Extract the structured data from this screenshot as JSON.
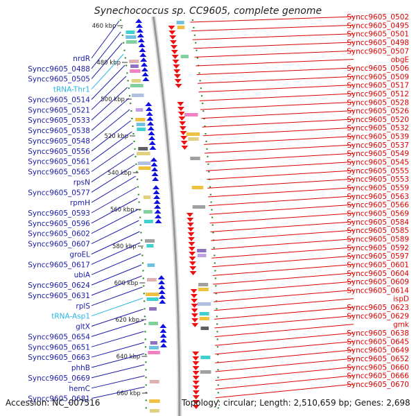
{
  "title": "Synechococcus sp. CC9605, complete genome",
  "footer": {
    "accession": "Accession: NC_007516",
    "summary": "Topology: circular; Length: 2,510,659 bp; Genes: 2,698"
  },
  "colors": {
    "backbone": "#999999",
    "forward_strand": "#1010e0",
    "reverse_strand": "#ee1111",
    "left_label": "#1a1aa8",
    "right_label": "#dd0000",
    "trna_label": "#29b6e8",
    "orf_ring": "#2a8a2a"
  },
  "ticks": [
    "460 kbp",
    "480 kbp",
    "500 kbp",
    "520 kbp",
    "540 kbp",
    "560 kbp",
    "580 kbp",
    "600 kbp",
    "620 kbp",
    "640 kbp",
    "660 kbp"
  ],
  "left_labels": [
    {
      "text": "nrdR",
      "kind": "gene"
    },
    {
      "text": "Syncc9605_0488",
      "kind": "gene"
    },
    {
      "text": "Syncc9605_0505",
      "kind": "gene"
    },
    {
      "text": "tRNA-Thr1",
      "kind": "trna"
    },
    {
      "text": "Syncc9605_0514",
      "kind": "gene"
    },
    {
      "text": "Syncc9605_0521",
      "kind": "gene"
    },
    {
      "text": "Syncc9605_0533",
      "kind": "gene"
    },
    {
      "text": "Syncc9605_0538",
      "kind": "gene"
    },
    {
      "text": "Syncc9605_0548",
      "kind": "gene"
    },
    {
      "text": "Syncc9605_0556",
      "kind": "gene"
    },
    {
      "text": "Syncc9605_0561",
      "kind": "gene"
    },
    {
      "text": "Syncc9605_0565",
      "kind": "gene"
    },
    {
      "text": "rpsN",
      "kind": "gene"
    },
    {
      "text": "Syncc9605_0577",
      "kind": "gene"
    },
    {
      "text": "rpmH",
      "kind": "gene"
    },
    {
      "text": "Syncc9605_0593",
      "kind": "gene"
    },
    {
      "text": "Syncc9605_0596",
      "kind": "gene"
    },
    {
      "text": "Syncc9605_0602",
      "kind": "gene"
    },
    {
      "text": "Syncc9605_0607",
      "kind": "gene"
    },
    {
      "text": "groEL",
      "kind": "gene"
    },
    {
      "text": "Syncc9605_0617",
      "kind": "gene"
    },
    {
      "text": "ubiA",
      "kind": "gene"
    },
    {
      "text": "Syncc9605_0624",
      "kind": "gene"
    },
    {
      "text": "Syncc9605_0631",
      "kind": "gene"
    },
    {
      "text": "rplS",
      "kind": "gene"
    },
    {
      "text": "tRNA-Asp1",
      "kind": "trna"
    },
    {
      "text": "gltX",
      "kind": "gene"
    },
    {
      "text": "Syncc9605_0654",
      "kind": "gene"
    },
    {
      "text": "Syncc9605_0651",
      "kind": "gene"
    },
    {
      "text": "Syncc9605_0663",
      "kind": "gene"
    },
    {
      "text": "phhB",
      "kind": "gene"
    },
    {
      "text": "Syncc9605_0669",
      "kind": "gene"
    },
    {
      "text": "hemC",
      "kind": "gene"
    },
    {
      "text": "Syncc9605_0681",
      "kind": "gene"
    }
  ],
  "right_labels": [
    "Syncc9605_0502",
    "Syncc9605_0495",
    "Syncc9605_0501",
    "Syncc9605_0498",
    "Syncc9605_0507",
    "obgE",
    "Syncc9605_0506",
    "Syncc9605_0509",
    "Syncc9605_0517",
    "Syncc9605_0512",
    "Syncc9605_0528",
    "Syncc9605_0526",
    "Syncc9605_0520",
    "Syncc9605_0532",
    "Syncc9605_0539",
    "Syncc9605_0537",
    "Syncc9605_0549",
    "Syncc9605_0545",
    "Syncc9605_0555",
    "Syncc9605_0553",
    "Syncc9605_0559",
    "Syncc9605_0563",
    "Syncc9605_0566",
    "Syncc9605_0569",
    "Syncc9605_0584",
    "Syncc9605_0585",
    "Syncc9605_0589",
    "Syncc9605_0592",
    "Syncc9605_0597",
    "Syncc9605_0601",
    "Syncc9605_0604",
    "Syncc9605_0609",
    "Syncc9605_0614",
    "ispD",
    "Syncc9605_0623",
    "Syncc9605_0629",
    "gmk",
    "Syncc9605_0638",
    "Syncc9605_0645",
    "Syncc9605_0649",
    "Syncc9605_0652",
    "Syncc9605_0660",
    "Syncc9605_0666",
    "Syncc9605_0670"
  ]
}
